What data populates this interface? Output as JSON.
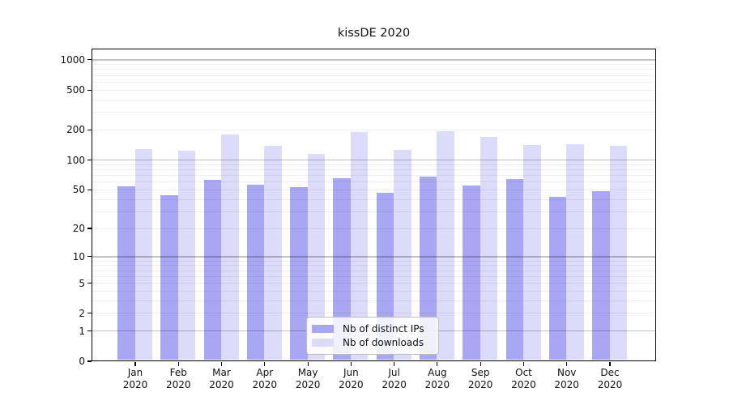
{
  "chart_data": {
    "type": "bar",
    "title": "kissDE 2020",
    "categories": [
      "Jan",
      "Feb",
      "Mar",
      "Apr",
      "May",
      "Jun",
      "Jul",
      "Aug",
      "Sep",
      "Oct",
      "Nov",
      "Dec"
    ],
    "year_label": "2020",
    "series": [
      {
        "name": "Nb of distinct IPs",
        "color": "#a9a7f3",
        "values": [
          54,
          44,
          63,
          56,
          53,
          65,
          46,
          68,
          55,
          64,
          42,
          48
        ]
      },
      {
        "name": "Nb of downloads",
        "color": "#dcdbf9",
        "values": [
          128,
          124,
          180,
          137,
          115,
          190,
          125,
          194,
          169,
          140,
          143,
          138
        ]
      }
    ],
    "y_ticks": [
      0,
      1,
      2,
      5,
      10,
      20,
      50,
      100,
      200,
      500,
      1000
    ],
    "y_scale": "log10(value+1)",
    "ylim": [
      0,
      1000
    ],
    "xlabel": "",
    "ylabel": "",
    "grid": true,
    "legend_position": "bottom-center",
    "axis_color": "#000000",
    "major_grid_color": "#b7b7b7",
    "minor_grid_color": "#ebebeb",
    "background_color": "#ffffff"
  }
}
